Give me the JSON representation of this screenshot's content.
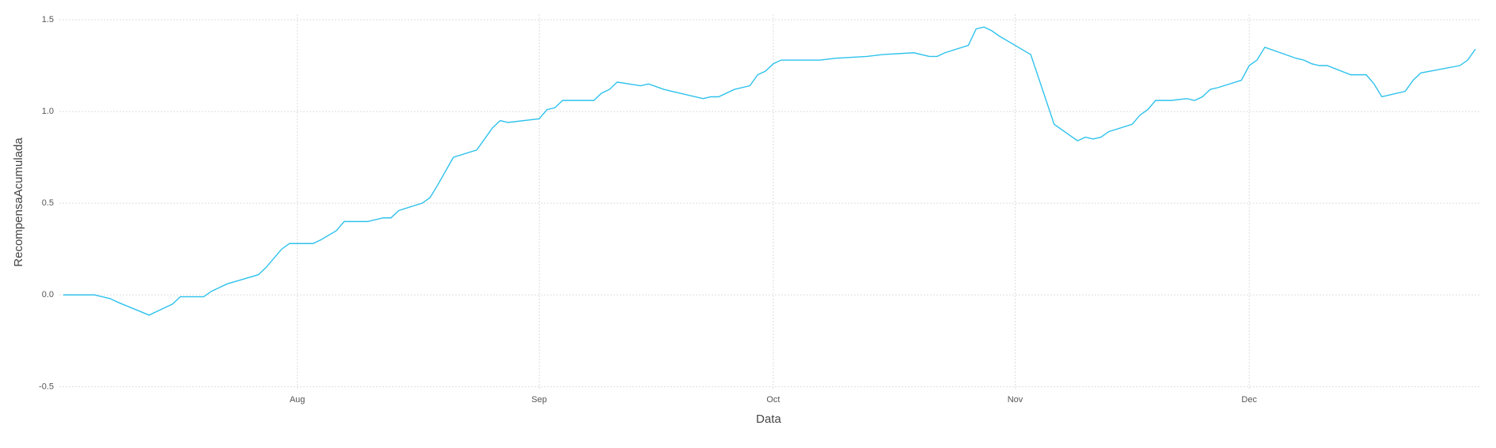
{
  "chart_data": {
    "type": "line",
    "x_label": "Data",
    "y_label": "RecompensaAcumulada",
    "x": [
      183,
      187,
      188,
      189,
      190,
      194,
      196,
      197,
      198,
      201,
      202,
      203,
      204,
      208,
      209,
      210,
      211,
      212,
      215,
      216,
      218,
      219,
      222,
      224,
      225,
      226,
      229,
      230,
      231,
      233,
      236,
      238,
      239,
      240,
      244,
      245,
      246,
      247,
      251,
      252,
      253,
      254,
      257,
      258,
      260,
      261,
      265,
      266,
      267,
      269,
      271,
      272,
      273,
      274,
      275,
      280,
      282,
      286,
      288,
      292,
      294,
      295,
      296,
      299,
      300,
      301,
      302,
      303,
      307,
      310,
      313,
      314,
      315,
      316,
      317,
      320,
      321,
      322,
      323,
      325,
      327,
      328,
      329,
      330,
      331,
      334,
      335,
      336,
      337,
      341,
      342,
      343,
      344,
      345,
      348,
      350,
      351,
      352,
      355,
      356,
      357,
      362,
      363,
      364
    ],
    "series": [
      {
        "name": "RecompensaAcumulada",
        "color": "#2ec2ec",
        "values": [
          0,
          0,
          -0.01,
          -0.02,
          -0.04,
          -0.11,
          -0.07,
          -0.05,
          -0.01,
          -0.01,
          0.02,
          0.04,
          0.06,
          0.11,
          0.15,
          0.2,
          0.25,
          0.28,
          0.28,
          0.3,
          0.35,
          0.4,
          0.4,
          0.42,
          0.42,
          0.46,
          0.5,
          0.53,
          0.6,
          0.75,
          0.79,
          0.91,
          0.95,
          0.94,
          0.96,
          1.01,
          1.02,
          1.06,
          1.06,
          1.1,
          1.12,
          1.16,
          1.14,
          1.15,
          1.12,
          1.11,
          1.07,
          1.08,
          1.08,
          1.12,
          1.14,
          1.2,
          1.22,
          1.26,
          1.28,
          1.28,
          1.29,
          1.3,
          1.31,
          1.32,
          1.3,
          1.3,
          1.32,
          1.36,
          1.45,
          1.46,
          1.44,
          1.41,
          1.31,
          0.93,
          0.84,
          0.86,
          0.85,
          0.86,
          0.89,
          0.93,
          0.98,
          1.01,
          1.06,
          1.06,
          1.07,
          1.06,
          1.08,
          1.12,
          1.13,
          1.17,
          1.25,
          1.28,
          1.35,
          1.29,
          1.28,
          1.26,
          1.25,
          1.25,
          1.2,
          1.2,
          1.15,
          1.08,
          1.11,
          1.17,
          1.21,
          1.25,
          1.28,
          1.34
        ]
      }
    ],
    "xlim": [
      182.5,
      364.5
    ],
    "xticks": [
      {
        "value": 213,
        "label": "Aug"
      },
      {
        "value": 244,
        "label": "Sep"
      },
      {
        "value": 274,
        "label": "Oct"
      },
      {
        "value": 305,
        "label": "Nov"
      },
      {
        "value": 335,
        "label": "Dec"
      }
    ],
    "ylim": [
      -0.52,
      1.53
    ],
    "yticks": [
      {
        "value": -0.5,
        "label": "-0.5"
      },
      {
        "value": 0,
        "label": "0.0"
      },
      {
        "value": 0.5,
        "label": "0.5"
      },
      {
        "value": 1,
        "label": "1.0"
      },
      {
        "value": 1.5,
        "label": "1.5"
      }
    ],
    "grid": true
  }
}
